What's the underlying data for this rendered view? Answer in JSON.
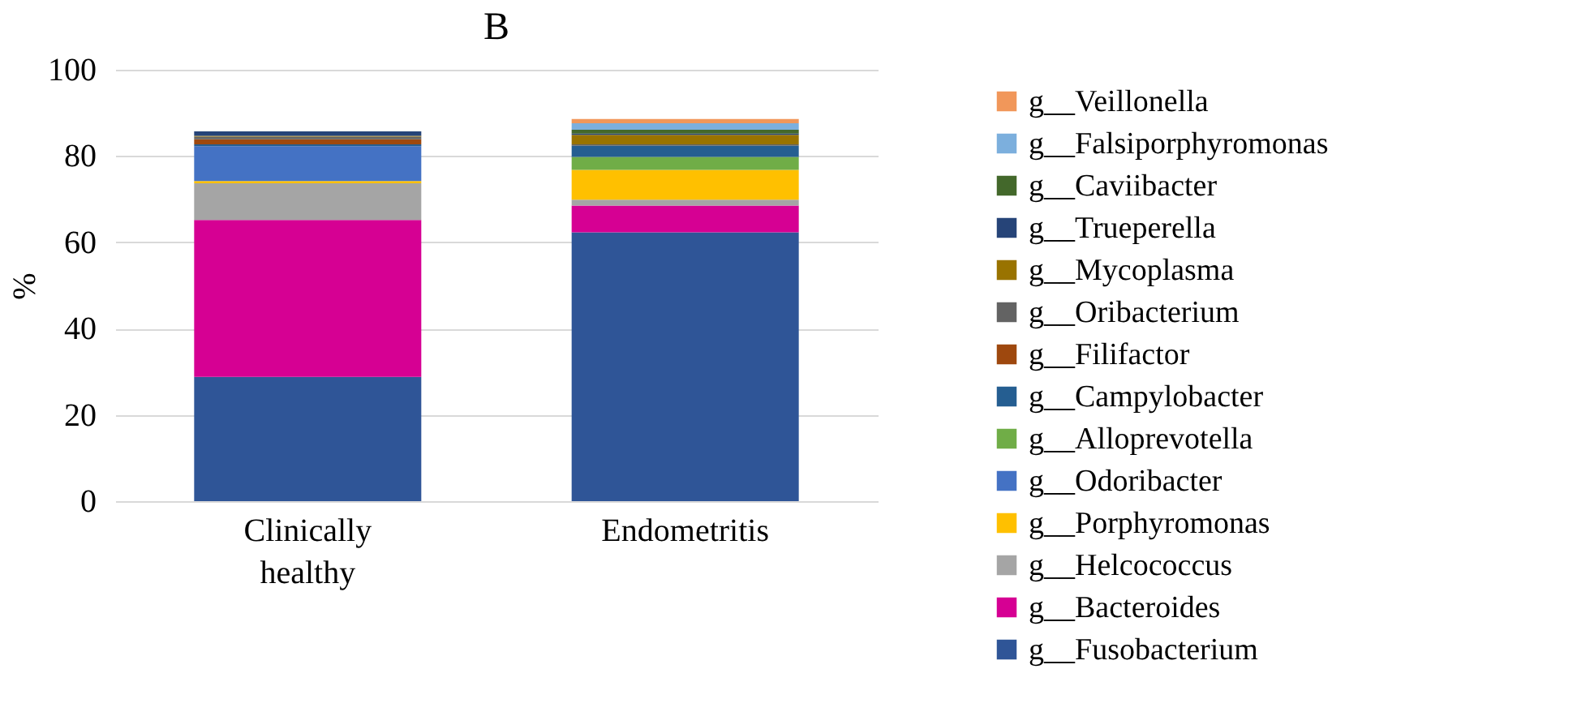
{
  "chart_data": {
    "type": "bar",
    "title": "B",
    "ylabel": "%",
    "stacked": true,
    "categories": [
      "Clinically healthy",
      "Endometritis"
    ],
    "ylim": [
      0,
      100
    ],
    "yticks": [
      0,
      20,
      40,
      60,
      80,
      100
    ],
    "grid": "y",
    "legend": "right",
    "series": [
      {
        "name": "g__Fusobacterium",
        "color": "#2f5597",
        "values": [
          28.8,
          62.3
        ]
      },
      {
        "name": "g__Bacteroides",
        "color": "#d60093",
        "values": [
          36.4,
          6.2
        ]
      },
      {
        "name": "g__Helcococcus",
        "color": "#a5a5a5",
        "values": [
          8.5,
          1.4
        ]
      },
      {
        "name": "g__Porphyromonas",
        "color": "#ffc000",
        "values": [
          0.5,
          6.9
        ]
      },
      {
        "name": "g__Odoribacter",
        "color": "#4472c4",
        "values": [
          8.1,
          0
        ]
      },
      {
        "name": "g__Alloprevotella",
        "color": "#70ad47",
        "values": [
          0,
          3.0
        ]
      },
      {
        "name": "g__Campylobacter",
        "color": "#255e91",
        "values": [
          0.4,
          2.6
        ]
      },
      {
        "name": "g__Filifactor",
        "color": "#9e480e",
        "values": [
          1.2,
          0
        ]
      },
      {
        "name": "g__Oribacterium",
        "color": "#636363",
        "values": [
          0.6,
          0.3
        ]
      },
      {
        "name": "g__Mycoplasma",
        "color": "#997300",
        "values": [
          0.2,
          2.2
        ]
      },
      {
        "name": "g__Trueperella",
        "color": "#264478",
        "values": [
          1.0,
          0.3
        ]
      },
      {
        "name": "g__Caviibacter",
        "color": "#43682b",
        "values": [
          0,
          0.9
        ]
      },
      {
        "name": "g__Falsiporphyromonas",
        "color": "#7cafdd",
        "values": [
          0,
          1.5
        ]
      },
      {
        "name": "g__Veillonella",
        "color": "#f1975a",
        "values": [
          0,
          1.0
        ]
      }
    ]
  }
}
